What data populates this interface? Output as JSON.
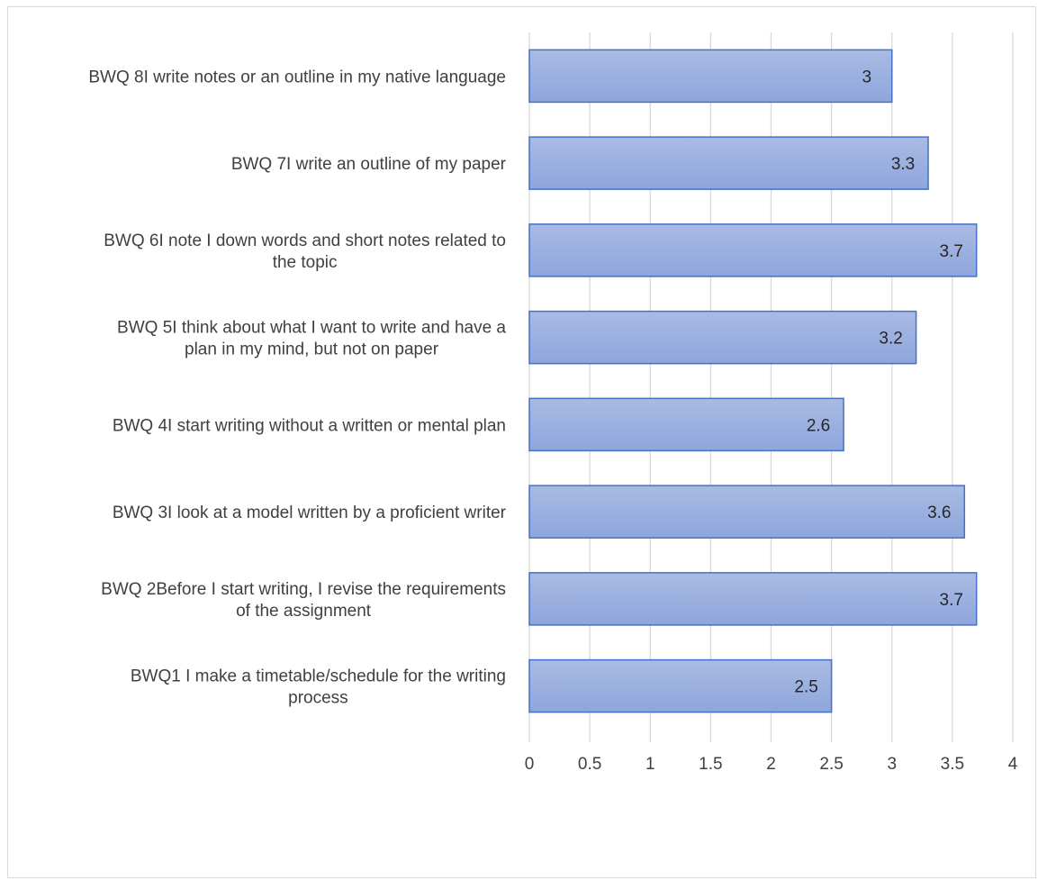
{
  "chart_data": {
    "type": "bar",
    "orientation": "horizontal",
    "categories": [
      "BWQ 8I write notes or an outline in my native language",
      "BWQ 7I write an outline of my paper",
      "BWQ 6I note I down words and short notes related to the topic",
      "BWQ 5I think about what I want to write and have a plan in my mind, but not on paper",
      "BWQ 4I start writing without a written or mental plan",
      "BWQ 3I look at a model written by a proficient writer",
      "BWQ 2Before I start writing, I revise the requirements of the assignment",
      "BWQ1 I make a timetable/schedule for the writing process"
    ],
    "category_lines": [
      [
        "BWQ 8I write notes or an outline in my native language"
      ],
      [
        "BWQ 7I write an outline of my paper"
      ],
      [
        "BWQ 6I note I down words and short notes related to",
        "the topic"
      ],
      [
        "BWQ 5I think about what I want to write and have a",
        "plan in my mind, but not on paper"
      ],
      [
        "BWQ 4I start writing without a written or mental plan"
      ],
      [
        "BWQ 3I look at a model written by a proficient writer"
      ],
      [
        "BWQ 2Before I start writing, I revise the requirements",
        "of the assignment"
      ],
      [
        "BWQ1 I make a timetable/schedule for the writing",
        "process"
      ]
    ],
    "values": [
      3,
      3.3,
      3.7,
      3.2,
      2.6,
      3.6,
      3.7,
      2.5
    ],
    "data_labels": [
      "3",
      "3.3",
      "3.7",
      "3.2",
      "2.6",
      "3.6",
      "3.7",
      "2.5"
    ],
    "xlim": [
      0,
      4
    ],
    "x_ticks": [
      0,
      0.5,
      1,
      1.5,
      2,
      2.5,
      3,
      3.5,
      4
    ],
    "x_tick_labels": [
      "0",
      "0.5",
      "1",
      "1.5",
      "2",
      "2.5",
      "3",
      "3.5",
      "4"
    ],
    "title": "",
    "xlabel": "",
    "ylabel": "",
    "grid": "vertical",
    "legend": "none",
    "colors": {
      "bar_fill_top": "#a9bbe4",
      "bar_fill_bottom": "#8ea6dc",
      "bar_stroke": "#4472c4",
      "grid": "#d9d9d9",
      "text": "#404040"
    }
  }
}
